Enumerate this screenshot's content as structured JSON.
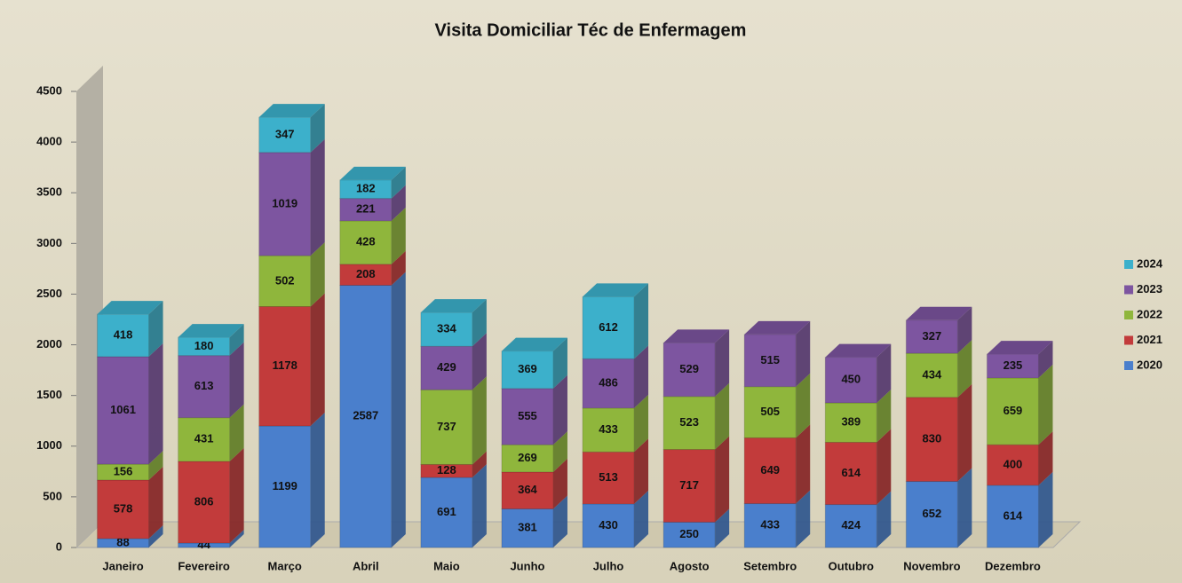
{
  "chart_data": {
    "type": "stacked_bar",
    "title": "Visita Domiciliar Téc de Enfermagem",
    "categories": [
      "Janeiro",
      "Fevereiro",
      "Março",
      "Abril",
      "Maio",
      "Junho",
      "Julho",
      "Agosto",
      "Setembro",
      "Outubro",
      "Novembro",
      "Dezembro"
    ],
    "series": [
      {
        "name": "2020",
        "color": "#4a7fcc",
        "values": [
          88,
          44,
          1199,
          2587,
          691,
          381,
          430,
          250,
          433,
          424,
          652,
          614
        ]
      },
      {
        "name": "2021",
        "color": "#c23b3b",
        "values": [
          578,
          806,
          1178,
          208,
          128,
          364,
          513,
          717,
          649,
          614,
          830,
          400
        ]
      },
      {
        "name": "2022",
        "color": "#8fb63c",
        "values": [
          156,
          431,
          502,
          428,
          737,
          269,
          433,
          523,
          505,
          389,
          434,
          659
        ]
      },
      {
        "name": "2023",
        "color": "#7d55a0",
        "values": [
          1061,
          613,
          1019,
          221,
          429,
          555,
          486,
          529,
          515,
          450,
          327,
          235
        ]
      },
      {
        "name": "2024",
        "color": "#3cb0cb",
        "values": [
          418,
          180,
          347,
          182,
          334,
          369,
          612,
          null,
          null,
          null,
          null,
          null
        ]
      }
    ],
    "ylim": [
      0,
      4500
    ],
    "yticks": [
      0,
      500,
      1000,
      1500,
      2000,
      2500,
      3000,
      3500,
      4000,
      4500
    ],
    "legend": "right"
  }
}
